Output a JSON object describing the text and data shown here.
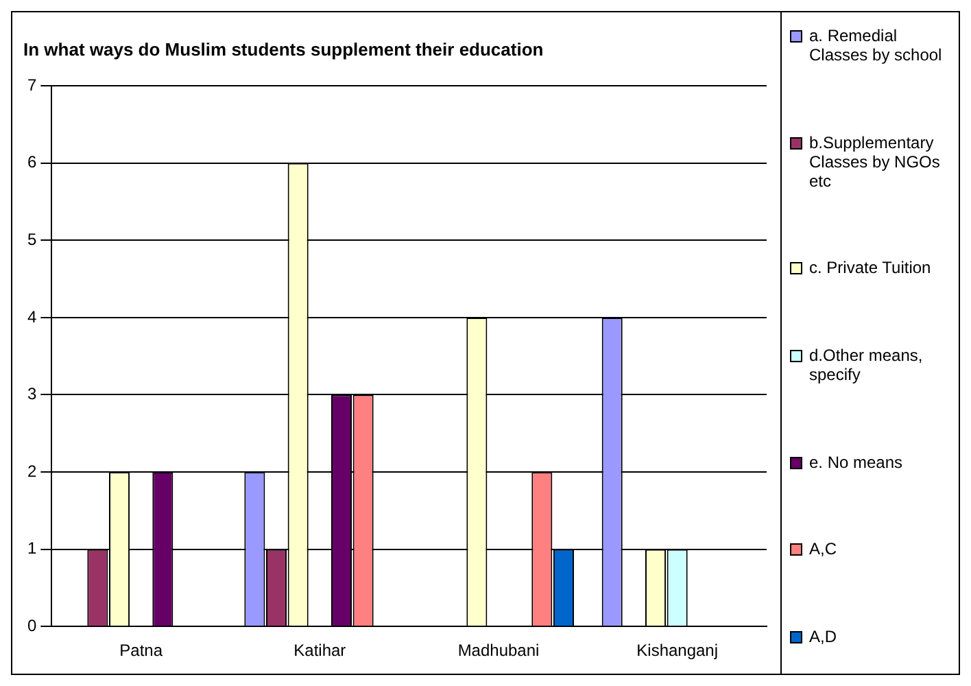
{
  "chart_data": {
    "type": "bar",
    "title": "In what ways do Muslim students supplement their education",
    "categories": [
      "Patna",
      "Katihar",
      "Madhubani",
      "Kishanganj"
    ],
    "series": [
      {
        "name": "a. Remedial Classes by school",
        "color": "#9999ff",
        "values": [
          0,
          2,
          0,
          4
        ]
      },
      {
        "name": "b.Supplementary Classes by NGOs etc",
        "color": "#993366",
        "values": [
          1,
          1,
          0,
          0
        ]
      },
      {
        "name": "c. Private Tuition",
        "color": "#ffffcc",
        "values": [
          2,
          6,
          4,
          1
        ]
      },
      {
        "name": "d.Other means, specify",
        "color": "#ccffff",
        "values": [
          0,
          0,
          0,
          1
        ]
      },
      {
        "name": "e. No means",
        "color": "#660066",
        "values": [
          2,
          3,
          0,
          0
        ]
      },
      {
        "name": "A,C",
        "color": "#ff8080",
        "values": [
          0,
          3,
          2,
          0
        ]
      },
      {
        "name": "A,D",
        "color": "#0066cc",
        "values": [
          0,
          0,
          1,
          0
        ]
      }
    ],
    "ylim": [
      0,
      7
    ],
    "yticks": [
      0,
      1,
      2,
      3,
      4,
      5,
      6,
      7
    ],
    "grid": "y",
    "legend": "right"
  }
}
